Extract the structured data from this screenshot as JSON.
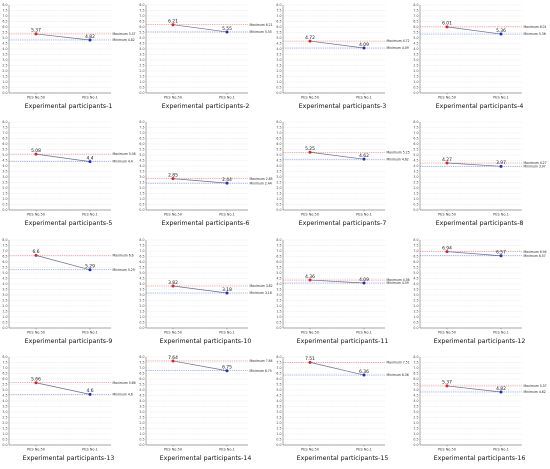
{
  "chart_data": [
    {
      "type": "line",
      "title": "Experimental participants-1",
      "categories": [
        "PES No.50",
        "PES No.1"
      ],
      "values": [
        5.37,
        4.82
      ],
      "annotations": [
        "Maximum 5.37",
        "Minimum 4.82"
      ],
      "ylim": [
        0,
        8
      ],
      "yticks": [
        "0.0",
        "0.5",
        "1.0",
        "1.5",
        "2.0",
        "2.5",
        "3.0",
        "3.5",
        "4.0",
        "4.5",
        "5.0",
        "5.5",
        "6.0",
        "6.5",
        "7.0",
        "7.5",
        "8.0"
      ]
    },
    {
      "type": "line",
      "title": "Experimental participants-2",
      "categories": [
        "PES No.50",
        "PES No.1"
      ],
      "values": [
        6.21,
        5.55
      ],
      "annotations": [
        "Maximum 6.21",
        "Minimum 5.55"
      ],
      "ylim": [
        0,
        8
      ],
      "yticks": [
        "0.0",
        "0.5",
        "1.0",
        "1.5",
        "2.0",
        "2.5",
        "3.0",
        "3.5",
        "4.0",
        "4.5",
        "5.0",
        "5.5",
        "6.0",
        "6.5",
        "7.0",
        "7.5",
        "8.0"
      ]
    },
    {
      "type": "line",
      "title": "Experimental participants-3",
      "categories": [
        "PES No.50",
        "PES No.1"
      ],
      "values": [
        4.72,
        4.09
      ],
      "annotations": [
        "Maximum 4.72",
        "Minimum 4.09"
      ],
      "ylim": [
        0,
        8
      ],
      "yticks": [
        "0.0",
        "0.5",
        "1.0",
        "1.5",
        "2.0",
        "2.5",
        "3.0",
        "3.5",
        "4.0",
        "4.5",
        "5.0",
        "5.5",
        "6.0",
        "6.5",
        "7.0",
        "7.5",
        "8.0"
      ]
    },
    {
      "type": "line",
      "title": "Experimental participants-4",
      "categories": [
        "PES No.50",
        "PES No.1"
      ],
      "values": [
        6.01,
        5.36
      ],
      "annotations": [
        "Maximum 6.01",
        "Minimum 5.36"
      ],
      "ylim": [
        0,
        8
      ],
      "yticks": [
        "0.0",
        "0.5",
        "1.0",
        "1.5",
        "2.0",
        "2.5",
        "3.0",
        "3.5",
        "4.0",
        "4.5",
        "5.0",
        "5.5",
        "6.0",
        "6.5",
        "7.0",
        "7.5",
        "8.0"
      ]
    },
    {
      "type": "line",
      "title": "Experimental participants-5",
      "categories": [
        "PES No.50",
        "PES No.1"
      ],
      "values": [
        5.08,
        4.4
      ],
      "annotations": [
        "Maximum 5.08",
        "Minimum 4.4"
      ],
      "ylim": [
        0,
        8
      ],
      "yticks": [
        "0.0",
        "0.5",
        "1.0",
        "1.5",
        "2.0",
        "2.5",
        "3.0",
        "3.5",
        "4.0",
        "4.5",
        "5.0",
        "5.5",
        "6.0",
        "6.5",
        "7.0",
        "7.5",
        "8.0"
      ]
    },
    {
      "type": "line",
      "title": "Experimental participants-6",
      "categories": [
        "PES No.50",
        "PES No.1"
      ],
      "values": [
        2.85,
        2.44
      ],
      "annotations": [
        "Maximum 2.85",
        "Minimum 2.44"
      ],
      "ylim": [
        0,
        8
      ],
      "yticks": [
        "0.0",
        "0.5",
        "1.0",
        "1.5",
        "2.0",
        "2.5",
        "3.0",
        "3.5",
        "4.0",
        "4.5",
        "5.0",
        "5.5",
        "6.0",
        "6.5",
        "7.0",
        "7.5",
        "8.0"
      ]
    },
    {
      "type": "line",
      "title": "Experimental participants-7",
      "categories": [
        "PES No.50",
        "PES No.1"
      ],
      "values": [
        5.25,
        4.62
      ],
      "annotations": [
        "Maximum 5.25",
        "Minimum 4.62"
      ],
      "ylim": [
        0,
        8
      ],
      "yticks": [
        "0.0",
        "0.5",
        "1.0",
        "1.5",
        "2.0",
        "2.5",
        "3.0",
        "3.5",
        "4.0",
        "4.5",
        "5.0",
        "5.5",
        "6.0",
        "6.5",
        "7.0",
        "7.5",
        "8.0"
      ]
    },
    {
      "type": "line",
      "title": "Experimental participants-8",
      "categories": [
        "PES No.50",
        "PES No.1"
      ],
      "values": [
        4.27,
        3.97
      ],
      "annotations": [
        "Maximum 4.27",
        "Minimum 3.97"
      ],
      "ylim": [
        0,
        8
      ],
      "yticks": [
        "0.0",
        "0.5",
        "1.0",
        "1.5",
        "2.0",
        "2.5",
        "3.0",
        "3.5",
        "4.0",
        "4.5",
        "5.0",
        "5.5",
        "6.0",
        "6.5",
        "7.0",
        "7.5",
        "8.0"
      ]
    },
    {
      "type": "line",
      "title": "Experimental participants-9",
      "categories": [
        "PES No.50",
        "PES No.1"
      ],
      "values": [
        6.6,
        5.29
      ],
      "annotations": [
        "Maximum 6.6",
        "Minimum 5.29"
      ],
      "ylim": [
        0,
        8
      ],
      "yticks": [
        "0.0",
        "0.5",
        "1.0",
        "1.5",
        "2.0",
        "2.5",
        "3.0",
        "3.5",
        "4.0",
        "4.5",
        "5.0",
        "5.5",
        "6.0",
        "6.5",
        "7.0",
        "7.5",
        "8.0"
      ]
    },
    {
      "type": "line",
      "title": "Experimental participants-10",
      "categories": [
        "PES No.50",
        "PES No.1"
      ],
      "values": [
        3.82,
        3.18
      ],
      "annotations": [
        "Maximum 3.82",
        "Minimum 3.18"
      ],
      "ylim": [
        0,
        8
      ],
      "yticks": [
        "0.0",
        "0.5",
        "1.0",
        "1.5",
        "2.0",
        "2.5",
        "3.0",
        "3.5",
        "4.0",
        "4.5",
        "5.0",
        "5.5",
        "6.0",
        "6.5",
        "7.0",
        "7.5",
        "8.0"
      ]
    },
    {
      "type": "line",
      "title": "Experimental participants-11",
      "categories": [
        "PES No.50",
        "PES No.1"
      ],
      "values": [
        4.36,
        4.09
      ],
      "annotations": [
        "Maximum 4.36",
        "Minimum 4.09"
      ],
      "ylim": [
        0,
        8
      ],
      "yticks": [
        "0.0",
        "0.5",
        "1.0",
        "1.5",
        "2.0",
        "2.5",
        "3.0",
        "3.5",
        "4.0",
        "4.5",
        "5.0",
        "5.5",
        "6.0",
        "6.5",
        "7.0",
        "7.5",
        "8.0"
      ]
    },
    {
      "type": "line",
      "title": "Experimental participants-12",
      "categories": [
        "PES No.50",
        "PES No.1"
      ],
      "values": [
        6.94,
        6.57
      ],
      "annotations": [
        "Maximum 6.94",
        "Minimum 6.57"
      ],
      "ylim": [
        0,
        8
      ],
      "yticks": [
        "0.0",
        "0.5",
        "1.0",
        "1.5",
        "2.0",
        "2.5",
        "3.0",
        "3.5",
        "4.0",
        "4.5",
        "5.0",
        "5.5",
        "6.0",
        "6.5",
        "7.0",
        "7.5",
        "8.0"
      ]
    },
    {
      "type": "line",
      "title": "Experimental participants-13",
      "categories": [
        "PES No.50",
        "PES No.1"
      ],
      "values": [
        5.66,
        4.6
      ],
      "annotations": [
        "Maximum 5.66",
        "Minimum 4.6"
      ],
      "ylim": [
        0,
        8
      ],
      "yticks": [
        "0.0",
        "0.5",
        "1.0",
        "1.5",
        "2.0",
        "2.5",
        "3.0",
        "3.5",
        "4.0",
        "4.5",
        "5.0",
        "5.5",
        "6.0",
        "6.5",
        "7.0",
        "7.5",
        "8.0"
      ]
    },
    {
      "type": "line",
      "title": "Experimental participants-14",
      "categories": [
        "PES No.50",
        "PES No.1"
      ],
      "values": [
        7.64,
        6.75
      ],
      "annotations": [
        "Maximum 7.64",
        "Minimum 6.75"
      ],
      "ylim": [
        0,
        8
      ],
      "yticks": [
        "0.0",
        "0.5",
        "1.0",
        "1.5",
        "2.0",
        "2.5",
        "3.0",
        "3.5",
        "4.0",
        "4.5",
        "5.0",
        "5.5",
        "6.0",
        "6.5",
        "7.0",
        "7.5",
        "8.0"
      ]
    },
    {
      "type": "line",
      "title": "Experimental participants-15",
      "categories": [
        "PES No.50",
        "PES No.1"
      ],
      "values": [
        7.51,
        6.36
      ],
      "annotations": [
        "Maximum 7.51",
        "Minimum 6.36"
      ],
      "ylim": [
        0,
        8
      ],
      "yticks": [
        "0.0",
        "0.5",
        "1.0",
        "1.5",
        "2.0",
        "2.5",
        "3.0",
        "3.5",
        "4.0",
        "4.5",
        "5.0",
        "5.5",
        "6.0",
        "6.5",
        "7.0",
        "7.5",
        "8.0"
      ]
    },
    {
      "type": "line",
      "title": "Experimental participants-16",
      "categories": [
        "PES No.50",
        "PES No.1"
      ],
      "values": [
        5.37,
        4.82
      ],
      "annotations": [
        "Maximum 5.37",
        "Minimum 4.82"
      ],
      "ylim": [
        0,
        8
      ],
      "yticks": [
        "0.0",
        "0.5",
        "1.0",
        "1.5",
        "2.0",
        "2.5",
        "3.0",
        "3.5",
        "4.0",
        "4.5",
        "5.0",
        "5.5",
        "6.0",
        "6.5",
        "7.0",
        "7.5",
        "8.0"
      ]
    }
  ],
  "colors": {
    "line": "#6a6a8a",
    "max_point": "#d62728",
    "min_point": "#1f2fb8",
    "max_line": "#e05050",
    "min_line": "#4a60d8",
    "grid": "#d4d4d4",
    "axis": "#555555"
  }
}
